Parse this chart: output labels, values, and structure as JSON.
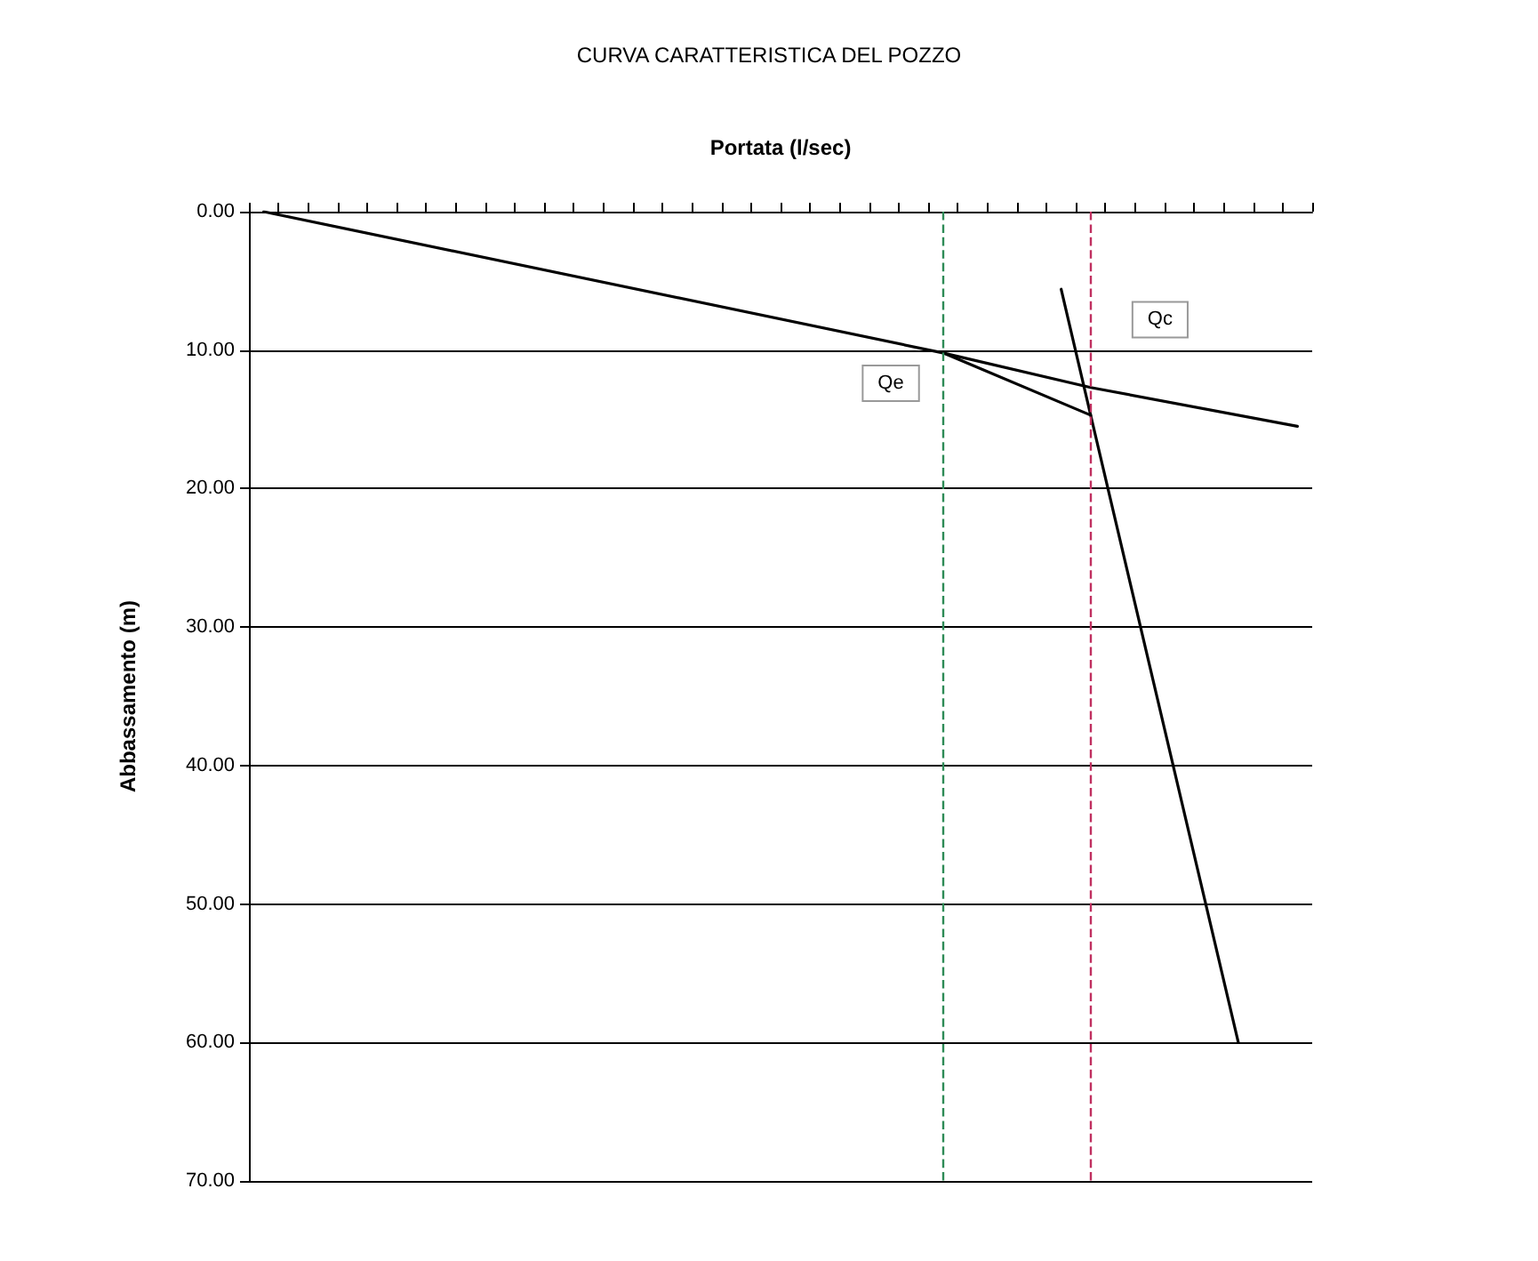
{
  "chart_data": {
    "type": "line",
    "title": "CURVA CARATTERISTICA DEL POZZO",
    "xlabel": "Portata (l/sec)",
    "ylabel": "Abbassamento (m)",
    "categories": [
      null,
      null,
      null,
      null,
      null,
      null,
      null,
      null,
      null,
      null,
      null,
      null,
      null,
      null,
      null,
      null,
      null,
      null,
      null,
      null,
      null,
      null,
      null,
      null,
      null,
      null,
      null,
      null,
      null,
      null,
      null,
      null,
      null,
      null,
      null,
      null
    ],
    "ylim": [
      70,
      0
    ],
    "yticks": [
      {
        "value": 0,
        "label": "0.00"
      },
      {
        "value": 10,
        "label": "10.00"
      },
      {
        "value": 20,
        "label": "20.00"
      },
      {
        "value": 30,
        "label": "30.00"
      },
      {
        "value": 40,
        "label": "40.00"
      },
      {
        "value": 50,
        "label": "50.00"
      },
      {
        "value": 60,
        "label": "60.00"
      },
      {
        "value": 70,
        "label": "70.00"
      }
    ],
    "tick_labels": "y",
    "grid": "y",
    "marker": "none",
    "line_style": "solid",
    "series": [
      {
        "color": "#000000",
        "values": [
          null,
          null,
          null,
          null,
          null,
          null,
          null,
          null,
          null,
          null,
          null,
          null,
          null,
          null,
          null,
          null,
          null,
          null,
          null,
          null,
          null,
          null,
          null,
          10.2,
          null,
          null,
          null,
          null,
          14.7,
          null,
          null,
          null,
          null,
          60.0,
          null,
          null
        ]
      },
      {
        "color": "#000000",
        "values": [
          0,
          null,
          null,
          null,
          null,
          null,
          null,
          null,
          null,
          null,
          null,
          null,
          null,
          null,
          null,
          null,
          null,
          null,
          null,
          null,
          null,
          null,
          null,
          10.2,
          null,
          null,
          null,
          null,
          12.7,
          null,
          null,
          null,
          null,
          null,
          null,
          15.5
        ]
      },
      {
        "color": "#000000",
        "values": [
          null,
          null,
          null,
          null,
          null,
          null,
          null,
          null,
          null,
          null,
          null,
          null,
          null,
          null,
          null,
          null,
          null,
          null,
          null,
          null,
          null,
          null,
          null,
          null,
          null,
          null,
          null,
          5.6,
          14.7,
          null,
          null,
          null,
          null,
          null,
          null,
          null
        ]
      }
    ],
    "annotations": [
      {
        "text": "Qe",
        "y": 12.4
      },
      {
        "text": "Qc",
        "y": 7.8
      }
    ]
  }
}
